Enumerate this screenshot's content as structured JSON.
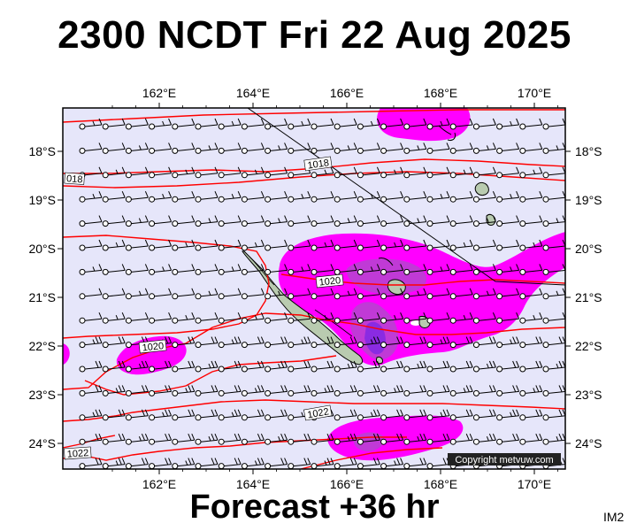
{
  "header": {
    "title": "2300 NCDT Fri 22 Aug 2025"
  },
  "footer": {
    "forecast": "Forecast +36 hr",
    "code": "IM2"
  },
  "map": {
    "lon_labels": [
      "162°E",
      "164°E",
      "166°E",
      "168°E",
      "170°E"
    ],
    "lat_labels": [
      "18°S",
      "19°S",
      "20°S",
      "21°S",
      "22°S",
      "23°S",
      "24°S"
    ],
    "isobar_labels": [
      "1018",
      "018",
      "1020",
      "1020",
      "1022",
      "1022"
    ],
    "copyright": "Copyright metvuw.com",
    "colors": {
      "background": "#e6e6fa",
      "isobar": "#ff0000",
      "rain_light": "#ff00ff",
      "rain_medium": "#c03ad6",
      "rain_heavy": "#8a2be2",
      "land": "#b9cbb0",
      "reef": "#9fb99a"
    },
    "wind_barb_description": "station-circle wind barbs on regular grid"
  }
}
